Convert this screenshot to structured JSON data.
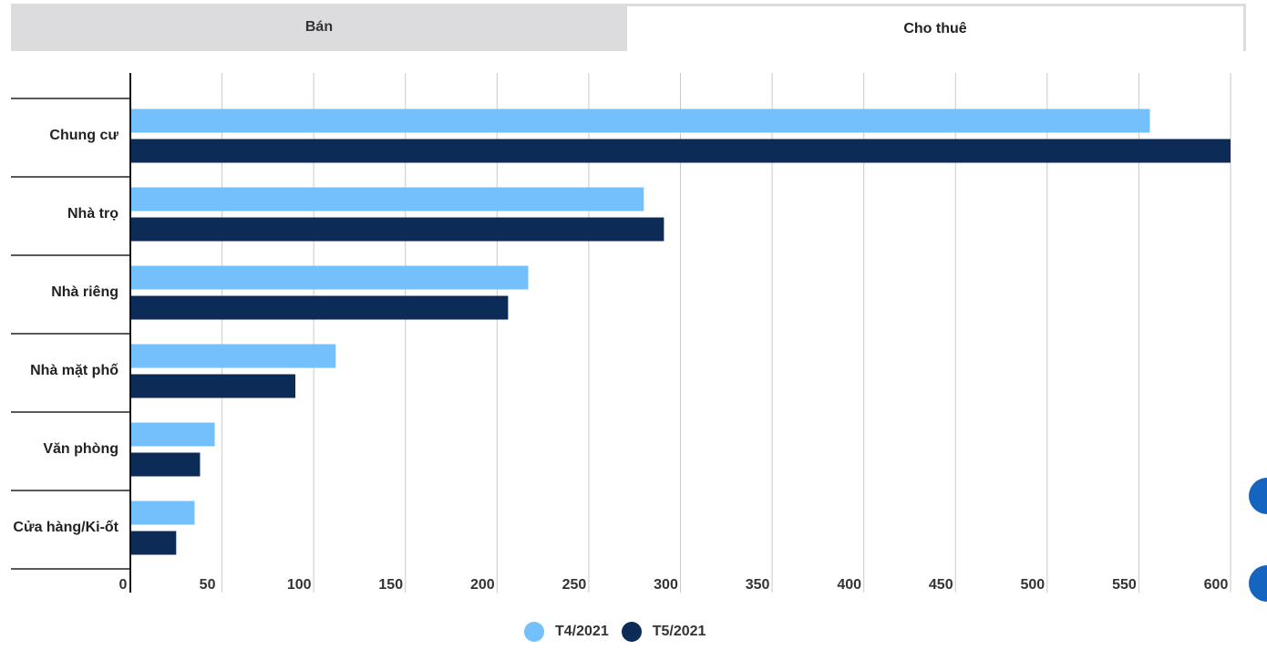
{
  "tabs": [
    {
      "label": "Bán",
      "active": false
    },
    {
      "label": "Cho thuê",
      "active": true
    }
  ],
  "chart_data": {
    "type": "bar",
    "orientation": "horizontal",
    "categories": [
      "Chung cư",
      "Nhà trọ",
      "Nhà riêng",
      "Nhà mặt phố",
      "Văn phòng",
      "Cửa hàng/Ki-ốt"
    ],
    "series": [
      {
        "name": "T4/2021",
        "color": "#74c0fc",
        "values": [
          556,
          280,
          217,
          112,
          46,
          35
        ]
      },
      {
        "name": "T5/2021",
        "color": "#0d2b57",
        "values": [
          600,
          291,
          206,
          90,
          38,
          25
        ]
      }
    ],
    "xlim": [
      0,
      600
    ],
    "xticks": [
      "0",
      "50",
      "100",
      "150",
      "200",
      "250",
      "300",
      "350",
      "400",
      "450",
      "500",
      "550",
      "600"
    ],
    "grid": true,
    "legend_position": "bottom-center"
  }
}
